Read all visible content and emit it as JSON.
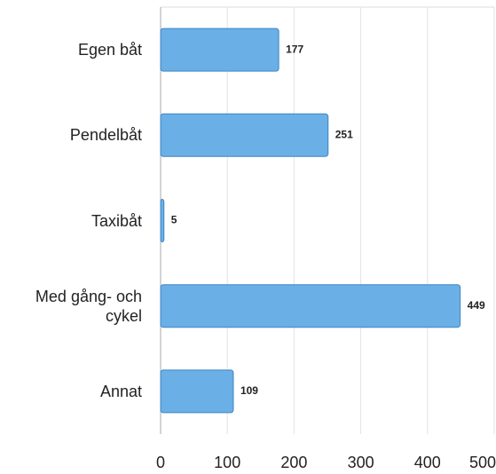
{
  "chart_data": {
    "type": "bar",
    "orientation": "horizontal",
    "categories": [
      "Egen båt",
      "Pendelbåt",
      "Taxibåt",
      "Med gång- och cykel",
      "Annat"
    ],
    "values": [
      177,
      251,
      5,
      449,
      109
    ],
    "color": "#6aafe6",
    "xlim": [
      0,
      500
    ],
    "xticks": [
      0,
      100,
      200,
      300,
      400,
      500
    ],
    "grid": true
  }
}
